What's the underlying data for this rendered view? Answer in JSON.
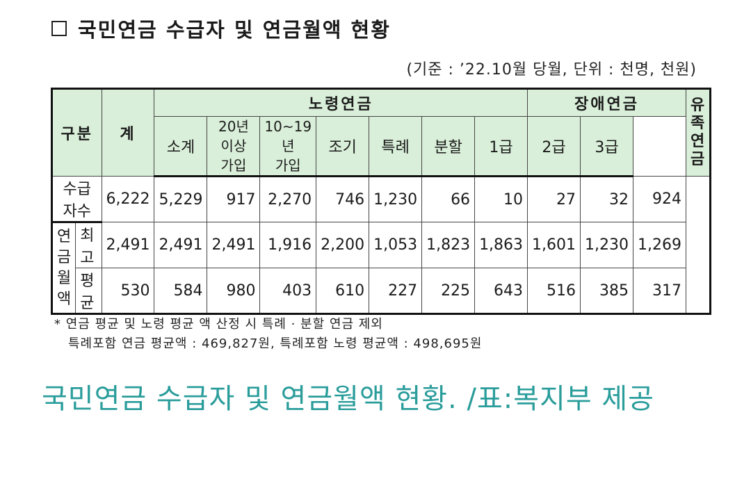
{
  "title": "국민연금 수급자 및 연금월액 현황",
  "basis": "(기준 : ’22.10월 당월, 단위 : 천명, 천원)",
  "table": {
    "header": {
      "category": "구분",
      "total": "계",
      "old_age": "노령연금",
      "disability": "장애연금",
      "survivor": "유족\n연금",
      "sub": {
        "subtotal": "소계",
        "over20_l1": "20년 이상",
        "over20_l2": "가입",
        "y10_19_l1": "10~19년",
        "y10_19_l2": "가입",
        "early": "조기",
        "special": "특례",
        "split": "분할",
        "g1": "1급",
        "g2": "2급",
        "g3": "3급"
      }
    },
    "rows": {
      "recipients": {
        "label": "수급자수",
        "values": [
          "6,222",
          "5,229",
          "917",
          "2,270",
          "746",
          "1,230",
          "66",
          "10",
          "27",
          "32",
          "924"
        ]
      },
      "pension_group_l1": "연금",
      "pension_group_l2": "월액",
      "max": {
        "label": "최고",
        "values": [
          "2,491",
          "2,491",
          "2,491",
          "1,916",
          "2,200",
          "1,053",
          "1,823",
          "1,863",
          "1,601",
          "1,230",
          "1,269"
        ]
      },
      "avg": {
        "label": "평균",
        "values": [
          "530",
          "584",
          "980",
          "403",
          "610",
          "227",
          "225",
          "643",
          "516",
          "385",
          "317"
        ]
      }
    }
  },
  "notes": {
    "line1": "* 연금 평균 및 노령 평균 액 산정 시 특례 · 분할 연금 제외",
    "line2": "특례포함 연금 평균액 : 469,827원, 특례포함 노령 평균액 : 498,695원"
  },
  "caption": "국민연금 수급자 및 연금월액 현황. /표:복지부 제공",
  "colors": {
    "header_bg": "#d9efd9",
    "caption": "#2a9d9b"
  }
}
